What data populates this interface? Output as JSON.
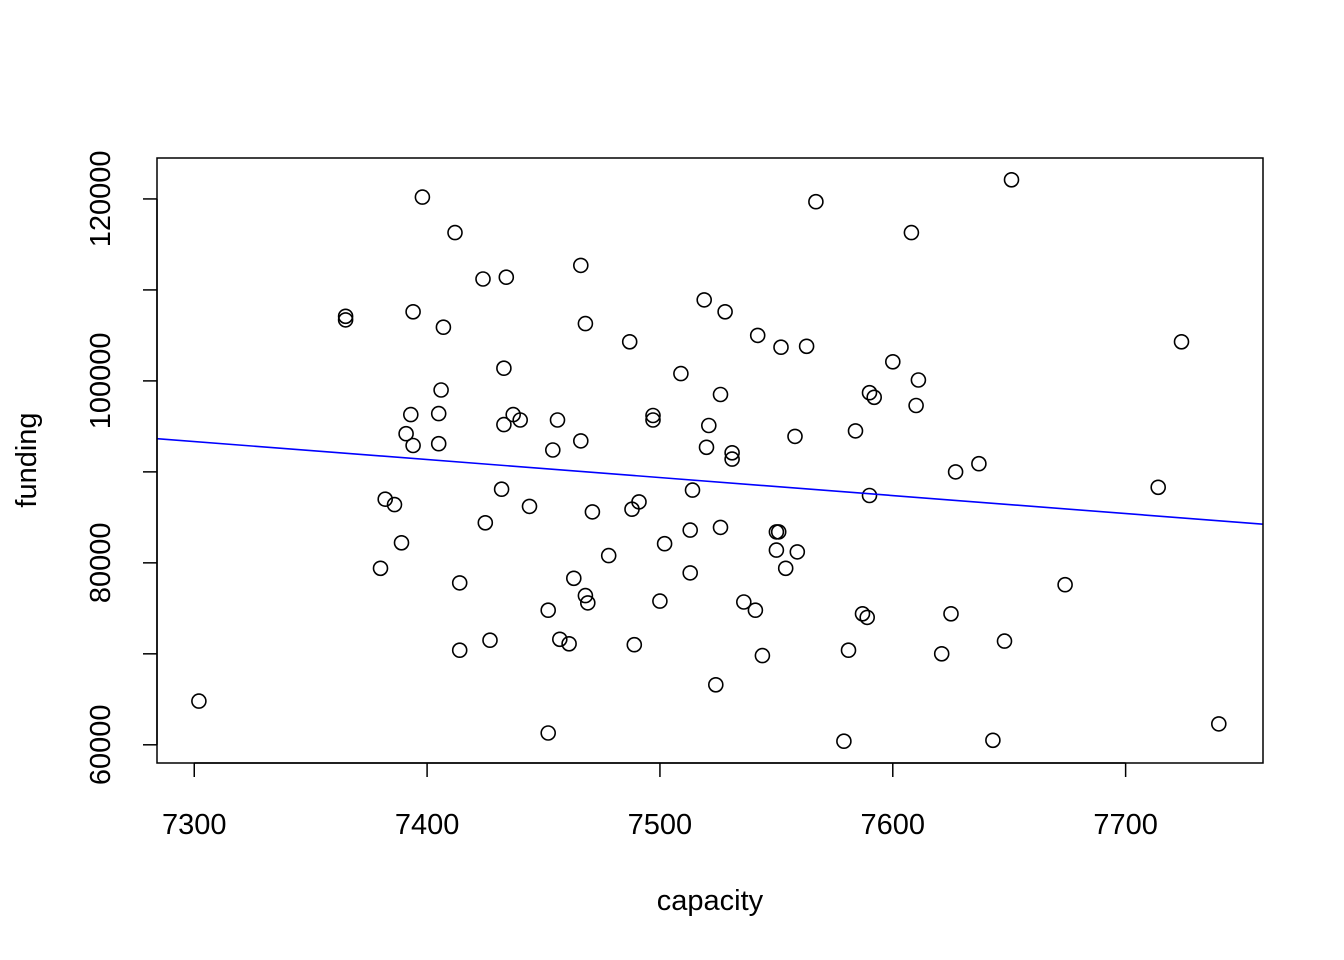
{
  "chart_data": {
    "type": "scatter",
    "xlabel": "capacity",
    "ylabel": "funding",
    "xlim": [
      7284,
      7759
    ],
    "ylim": [
      58000,
      124500
    ],
    "x_ticks": [
      7300,
      7400,
      7500,
      7600,
      7700
    ],
    "y_ticks": [
      60000,
      70000,
      80000,
      90000,
      100000,
      110000,
      120000
    ],
    "y_tick_labels": [
      "60000",
      "",
      "80000",
      "",
      "100000",
      "",
      "120000"
    ],
    "grid": false,
    "legend": "none",
    "colors": {
      "points": "#000000",
      "trend_line": "#0000ff"
    },
    "trend_line": {
      "x": [
        7284,
        7759
      ],
      "y": [
        93650,
        84250
      ]
    },
    "series": [
      {
        "points": [
          [
            7302,
            64800
          ],
          [
            7365,
            106700
          ],
          [
            7365,
            107100
          ],
          [
            7380,
            79400
          ],
          [
            7382,
            87000
          ],
          [
            7386,
            86400
          ],
          [
            7389,
            82200
          ],
          [
            7391,
            94200
          ],
          [
            7393,
            96300
          ],
          [
            7394,
            92900
          ],
          [
            7394,
            107600
          ],
          [
            7398,
            120200
          ],
          [
            7405,
            96400
          ],
          [
            7405,
            93100
          ],
          [
            7406,
            99000
          ],
          [
            7407,
            105900
          ],
          [
            7412,
            116300
          ],
          [
            7414,
            77800
          ],
          [
            7414,
            70400
          ],
          [
            7424,
            111200
          ],
          [
            7425,
            84400
          ],
          [
            7427,
            71500
          ],
          [
            7432,
            88100
          ],
          [
            7433,
            101400
          ],
          [
            7433,
            95200
          ],
          [
            7434,
            111400
          ],
          [
            7437,
            96300
          ],
          [
            7440,
            95700
          ],
          [
            7444,
            86200
          ],
          [
            7452,
            74800
          ],
          [
            7452,
            61300
          ],
          [
            7454,
            92400
          ],
          [
            7456,
            95700
          ],
          [
            7457,
            71600
          ],
          [
            7461,
            71100
          ],
          [
            7463,
            78300
          ],
          [
            7466,
            112700
          ],
          [
            7466,
            93400
          ],
          [
            7468,
            76400
          ],
          [
            7468,
            106300
          ],
          [
            7469,
            75600
          ],
          [
            7471,
            85600
          ],
          [
            7478,
            80800
          ],
          [
            7487,
            104300
          ],
          [
            7488,
            85900
          ],
          [
            7489,
            71000
          ],
          [
            7491,
            86700
          ],
          [
            7497,
            96200
          ],
          [
            7497,
            95700
          ],
          [
            7500,
            75800
          ],
          [
            7502,
            82100
          ],
          [
            7509,
            100800
          ],
          [
            7513,
            83600
          ],
          [
            7513,
            78900
          ],
          [
            7514,
            88000
          ],
          [
            7519,
            108900
          ],
          [
            7520,
            92700
          ],
          [
            7521,
            95100
          ],
          [
            7524,
            66600
          ],
          [
            7526,
            98500
          ],
          [
            7526,
            83900
          ],
          [
            7528,
            107600
          ],
          [
            7531,
            91400
          ],
          [
            7531,
            92100
          ],
          [
            7536,
            75700
          ],
          [
            7541,
            74800
          ],
          [
            7542,
            105000
          ],
          [
            7544,
            69800
          ],
          [
            7550,
            81400
          ],
          [
            7550,
            83400
          ],
          [
            7551,
            83400
          ],
          [
            7552,
            103700
          ],
          [
            7554,
            79400
          ],
          [
            7558,
            93900
          ],
          [
            7559,
            81200
          ],
          [
            7563,
            103800
          ],
          [
            7567,
            119700
          ],
          [
            7579,
            60400
          ],
          [
            7581,
            70400
          ],
          [
            7584,
            94500
          ],
          [
            7587,
            74400
          ],
          [
            7589,
            74000
          ],
          [
            7590,
            87400
          ],
          [
            7590,
            98700
          ],
          [
            7592,
            98200
          ],
          [
            7600,
            102100
          ],
          [
            7608,
            116300
          ],
          [
            7610,
            97300
          ],
          [
            7611,
            100100
          ],
          [
            7621,
            70000
          ],
          [
            7625,
            74400
          ],
          [
            7627,
            90000
          ],
          [
            7637,
            90900
          ],
          [
            7643,
            60500
          ],
          [
            7648,
            71400
          ],
          [
            7651,
            122100
          ],
          [
            7674,
            77600
          ],
          [
            7714,
            88300
          ],
          [
            7724,
            104300
          ],
          [
            7740,
            62300
          ]
        ]
      }
    ]
  }
}
